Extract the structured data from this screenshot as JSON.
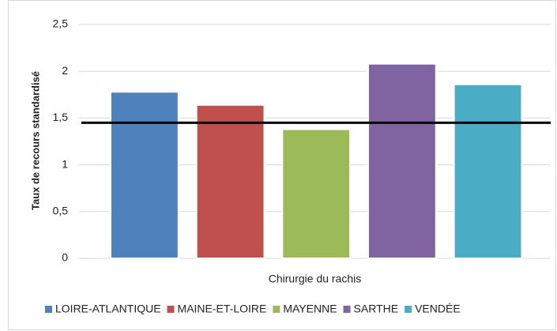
{
  "chart_data": {
    "type": "bar",
    "y_label": "Taux de recours standardisé",
    "categories": [
      "Chirurgie du rachis"
    ],
    "series": [
      {
        "name": "LOIRE-ATLANTIQUE",
        "color": "#4f81bd",
        "values": [
          1.78
        ]
      },
      {
        "name": "MAINE-ET-LOIRE",
        "color": "#c0504d",
        "values": [
          1.64
        ]
      },
      {
        "name": "MAYENNE",
        "color": "#9bbb59",
        "values": [
          1.38
        ]
      },
      {
        "name": "SARTHE",
        "color": "#8064a2",
        "values": [
          2.08
        ]
      },
      {
        "name": "VENDÉE",
        "color": "#4bacc6",
        "values": [
          1.86
        ]
      }
    ],
    "reference_line": 1.45,
    "ylim": [
      0,
      2.5
    ],
    "yticks": [
      0,
      {
        "value": 0.5,
        "label": "0,5"
      },
      1,
      {
        "value": 1.5,
        "label": "1,5"
      },
      2,
      {
        "value": 2.5,
        "label": "2,5"
      }
    ],
    "grid": true,
    "legend": "bottom"
  }
}
